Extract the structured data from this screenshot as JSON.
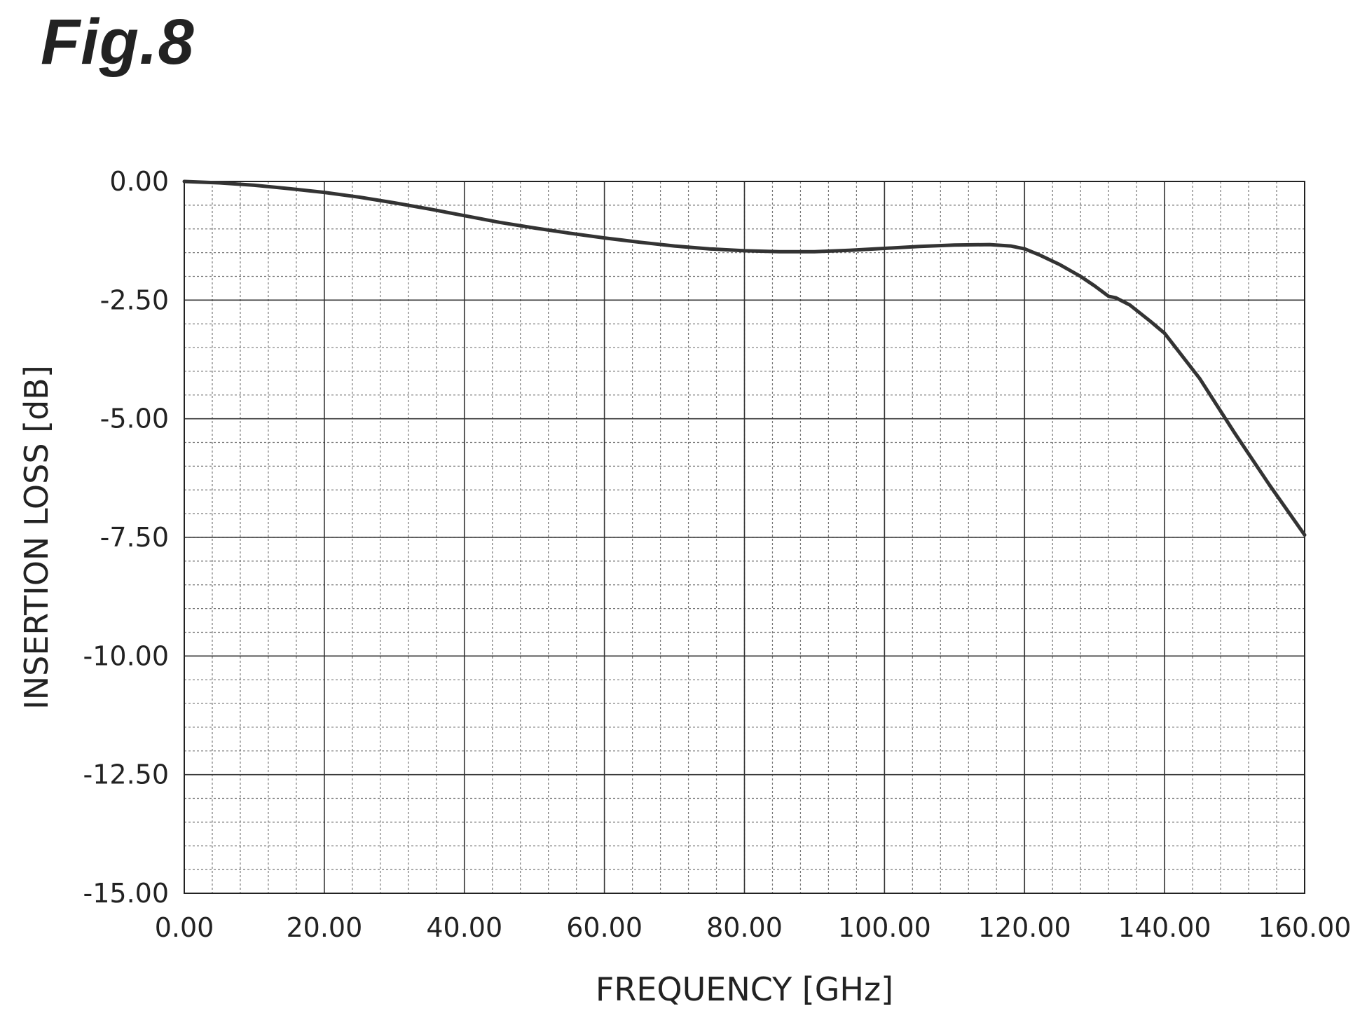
{
  "figure_label": "Fig.8",
  "chart_data": {
    "type": "line",
    "xlabel": "FREQUENCY [GHz]",
    "ylabel": "INSERTION LOSS [dB]",
    "xlim": [
      0,
      160
    ],
    "ylim": [
      -15,
      0
    ],
    "x_ticks": [
      0,
      20,
      40,
      60,
      80,
      100,
      120,
      140,
      160
    ],
    "x_tick_labels": [
      "0.00",
      "20.00",
      "40.00",
      "60.00",
      "80.00",
      "100.00",
      "120.00",
      "140.00",
      "160.00"
    ],
    "y_ticks": [
      0,
      -2.5,
      -5,
      -7.5,
      -10,
      -12.5,
      -15
    ],
    "y_tick_labels": [
      "0.00",
      "-2.50",
      "-5.00",
      "-7.50",
      "-10.00",
      "-12.50",
      "-15.00"
    ],
    "grid": true,
    "line_color": "#333333",
    "series": [
      {
        "x": [
          0,
          5,
          10,
          15,
          20,
          25,
          30,
          35,
          40,
          45,
          50,
          55,
          60,
          65,
          70,
          75,
          80,
          85,
          90,
          95,
          100,
          105,
          110,
          115,
          118,
          120,
          122,
          125,
          128,
          130,
          132,
          133,
          135,
          138,
          140,
          145,
          150,
          155,
          160
        ],
        "y": [
          0,
          -0.03,
          -0.08,
          -0.15,
          -0.23,
          -0.33,
          -0.45,
          -0.58,
          -0.72,
          -0.86,
          -0.98,
          -1.09,
          -1.19,
          -1.28,
          -1.36,
          -1.42,
          -1.46,
          -1.48,
          -1.48,
          -1.45,
          -1.41,
          -1.37,
          -1.34,
          -1.33,
          -1.36,
          -1.42,
          -1.54,
          -1.75,
          -2.0,
          -2.2,
          -2.42,
          -2.45,
          -2.6,
          -2.95,
          -3.2,
          -4.15,
          -5.3,
          -6.4,
          -7.45
        ]
      }
    ]
  }
}
